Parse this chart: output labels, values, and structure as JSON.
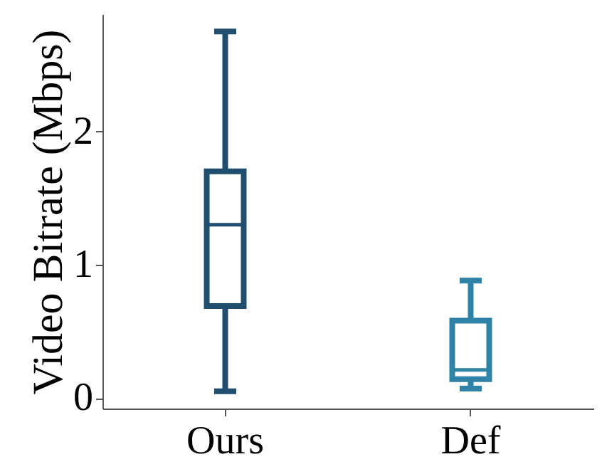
{
  "chart_data": {
    "type": "box",
    "ylabel": "Video Bitrate (Mbps)",
    "categories": [
      "Ours",
      "Def"
    ],
    "boxes": [
      {
        "low": 0.05,
        "q1": 0.69,
        "median": 1.3,
        "q3": 1.7,
        "high": 2.75
      },
      {
        "low": 0.07,
        "q1": 0.14,
        "median": 0.21,
        "q3": 0.58,
        "high": 0.88
      }
    ],
    "colors": [
      "#1f4e6e",
      "#2f83a6"
    ],
    "ylim": [
      -0.08,
      2.88
    ],
    "yticks": [
      0,
      1,
      2
    ],
    "grid": false
  }
}
